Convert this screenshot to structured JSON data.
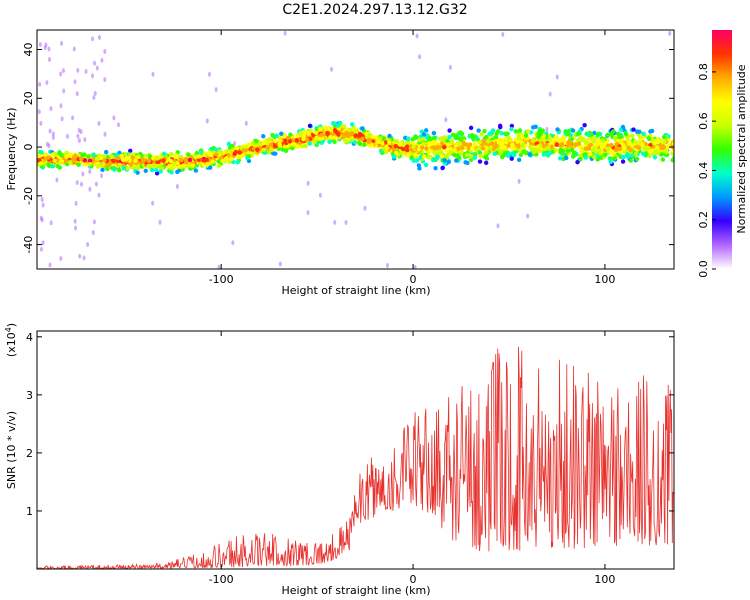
{
  "chart_data": [
    {
      "type": "heatmap",
      "title": "C2E1.2024.297.13.12.G32",
      "xlabel": "Height of straight line (km)",
      "ylabel": "Frequency (Hz)",
      "xlim": [
        -196,
        136
      ],
      "ylim": [
        -50,
        48
      ],
      "xticks": [
        -100,
        0,
        100
      ],
      "xtick_labels": [
        "-100",
        "0",
        "100"
      ],
      "yticks": [
        -40,
        -20,
        0,
        20,
        40
      ],
      "ytick_labels": [
        "-40",
        "-20",
        "0",
        "20",
        "40"
      ],
      "colorbar": {
        "label": "Normalized spectral amplitude",
        "range": [
          0.0,
          0.97
        ],
        "ticks": [
          0.0,
          0.2,
          0.4,
          0.6,
          0.8
        ],
        "tick_labels": [
          "0.0",
          "0.2",
          "0.4",
          "0.6",
          "0.8"
        ],
        "colormap": [
          "#ffffff",
          "#b266ff",
          "#3300ff",
          "#0099ff",
          "#00ffcc",
          "#33ff00",
          "#ccff00",
          "#ffff00",
          "#ffaa00",
          "#ff3300",
          "#ff0066"
        ]
      },
      "ridge": {
        "x": [
          -196,
          -180,
          -160,
          -140,
          -120,
          -100,
          -80,
          -60,
          -50,
          -40,
          -30,
          -20,
          -10,
          0,
          20,
          40,
          60,
          80,
          100,
          120,
          136
        ],
        "y": [
          -5,
          -5,
          -6,
          -6,
          -6,
          -4,
          0,
          3,
          5,
          6,
          5,
          2,
          0,
          -1,
          0,
          1,
          2,
          1,
          0,
          1,
          0
        ]
      }
    },
    {
      "type": "line",
      "xlabel": "Height of straight line (km)",
      "ylabel": "SNR (10 * v/v)",
      "y_multiplier": "(x10",
      "y_multiplier_exp": "4",
      "xlim": [
        -196,
        136
      ],
      "ylim": [
        0,
        4.1
      ],
      "xticks": [
        -100,
        0,
        100
      ],
      "xtick_labels": [
        "-100",
        "0",
        "100"
      ],
      "yticks": [
        1,
        2,
        3,
        4
      ],
      "ytick_labels": [
        "1",
        "2",
        "3",
        "4"
      ],
      "line_color": "#e8302c",
      "envelope": {
        "x": [
          -196,
          -160,
          -130,
          -110,
          -95,
          -80,
          -60,
          -45,
          -33,
          -32,
          -20,
          -10,
          0,
          10,
          20,
          35,
          50,
          70,
          90,
          110,
          130,
          136
        ],
        "low": [
          0,
          0,
          0.01,
          0.02,
          0.02,
          0.05,
          0.05,
          0.1,
          0.3,
          0.7,
          0.9,
          1.0,
          1.1,
          0.9,
          0.5,
          0.3,
          0.3,
          0.35,
          0.35,
          0.4,
          0.4,
          0.4
        ],
        "high": [
          0.05,
          0.07,
          0.1,
          0.3,
          0.6,
          0.65,
          0.55,
          0.5,
          0.9,
          1.5,
          2.0,
          2.3,
          2.7,
          2.9,
          3.2,
          3.6,
          4.0,
          3.8,
          3.7,
          3.5,
          3.3,
          3.2
        ]
      }
    }
  ]
}
